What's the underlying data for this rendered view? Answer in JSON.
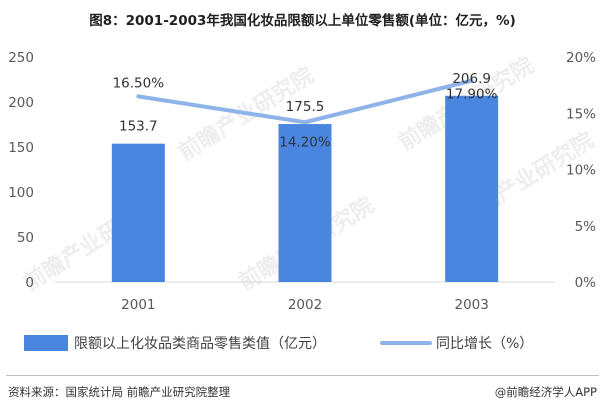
{
  "title": "图8：2001-2003年我国化妆品限额以上单位零售额(单位：亿元，%)",
  "source": "资料来源：国家统计局 前瞻产业研究院整理",
  "brand": "@前瞻经济学人APP",
  "watermark": "前瞻产业研究院",
  "colors": {
    "bar": "#4a86e0",
    "line": "#8db3ea",
    "axis_text": "#595959",
    "grid": "#e6e6e6"
  },
  "chart_data": {
    "type": "bar",
    "title": "图8：2001-2003年我国化妆品限额以上单位零售额(单位：亿元，%)",
    "categories": [
      "2001",
      "2002",
      "2003"
    ],
    "y_left": {
      "min": 0,
      "max": 250,
      "ticks": [
        "0",
        "50",
        "100",
        "150",
        "200",
        "250"
      ]
    },
    "y_right": {
      "min": 0,
      "max": 20,
      "ticks": [
        "0%",
        "5%",
        "10%",
        "15%",
        "20%"
      ]
    },
    "series": [
      {
        "name": "限额以上化妆品类商品零售类值（亿元）",
        "type": "bar",
        "axis": "left",
        "values": [
          153.7,
          175.5,
          206.9
        ],
        "labels": [
          "153.7",
          "175.5",
          "206.9"
        ]
      },
      {
        "name": "同比增长（%）",
        "type": "line",
        "axis": "right",
        "values": [
          16.5,
          14.2,
          17.9
        ],
        "labels": [
          "16.50%",
          "14.20%",
          "17.90%"
        ]
      }
    ],
    "legend_position": "bottom",
    "grid": false
  }
}
